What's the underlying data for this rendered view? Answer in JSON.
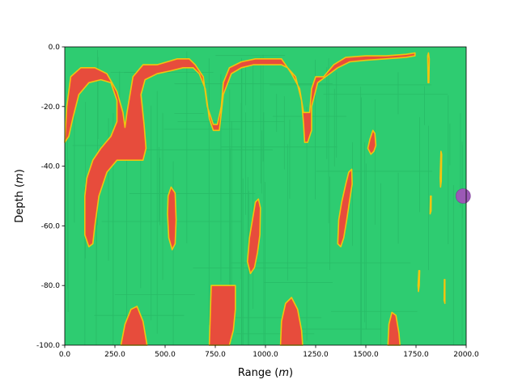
{
  "chart_data": {
    "type": "heatmap",
    "title": "",
    "xlabel": "Range (m)",
    "ylabel": "Depth (m)",
    "xlim": [
      0,
      2000
    ],
    "ylim": [
      -100,
      0
    ],
    "x_ticks": [
      "0.0",
      "250.0",
      "500.0",
      "750.0",
      "1000.0",
      "1250.0",
      "1500.0",
      "1750.0",
      "2000.0"
    ],
    "y_ticks": [
      "0.0",
      "-20.0",
      "-40.0",
      "-60.0",
      "-80.0",
      "-100.0"
    ],
    "grid": false,
    "legend": "none",
    "colors": {
      "background_field": "#2ecc71",
      "region_fill": "#e74c3c",
      "region_edge": "#f1c40f",
      "marker": "#9b59b6"
    },
    "regions": [
      {
        "name": "surface-ridge",
        "points": [
          [
            0,
            -32
          ],
          [
            10,
            -20
          ],
          [
            30,
            -10
          ],
          [
            80,
            -7
          ],
          [
            150,
            -7
          ],
          [
            210,
            -9
          ],
          [
            260,
            -15
          ],
          [
            290,
            -22
          ],
          [
            300,
            -27
          ],
          [
            310,
            -22
          ],
          [
            340,
            -10
          ],
          [
            390,
            -6
          ],
          [
            460,
            -6
          ],
          [
            510,
            -5
          ],
          [
            560,
            -4
          ],
          [
            620,
            -4
          ],
          [
            650,
            -6
          ],
          [
            690,
            -10
          ],
          [
            710,
            -20
          ],
          [
            740,
            -26
          ],
          [
            760,
            -26
          ],
          [
            780,
            -20
          ],
          [
            790,
            -12
          ],
          [
            820,
            -7
          ],
          [
            880,
            -5
          ],
          [
            950,
            -4
          ],
          [
            1010,
            -4
          ],
          [
            1080,
            -4
          ],
          [
            1100,
            -6
          ],
          [
            1130,
            -9
          ],
          [
            1170,
            -14
          ],
          [
            1190,
            -22
          ],
          [
            1220,
            -22
          ],
          [
            1230,
            -14
          ],
          [
            1250,
            -10
          ],
          [
            1290,
            -10
          ],
          [
            1340,
            -6
          ],
          [
            1400,
            -3.5
          ],
          [
            1500,
            -3
          ],
          [
            1600,
            -3
          ],
          [
            1700,
            -2.5
          ],
          [
            1745,
            -2
          ],
          [
            1745,
            -3
          ],
          [
            1700,
            -3.5
          ],
          [
            1600,
            -4
          ],
          [
            1500,
            -4.5
          ],
          [
            1420,
            -5
          ],
          [
            1360,
            -7
          ],
          [
            1300,
            -10
          ],
          [
            1260,
            -12
          ],
          [
            1230,
            -20
          ],
          [
            1230,
            -28
          ],
          [
            1210,
            -32
          ],
          [
            1195,
            -32
          ],
          [
            1190,
            -26
          ],
          [
            1180,
            -18
          ],
          [
            1150,
            -10
          ],
          [
            1110,
            -7
          ],
          [
            1080,
            -6
          ],
          [
            1000,
            -6
          ],
          [
            940,
            -6
          ],
          [
            880,
            -7
          ],
          [
            830,
            -9
          ],
          [
            790,
            -16
          ],
          [
            770,
            -28
          ],
          [
            740,
            -28
          ],
          [
            720,
            -24
          ],
          [
            700,
            -14
          ],
          [
            670,
            -9
          ],
          [
            640,
            -7
          ],
          [
            590,
            -7
          ],
          [
            530,
            -8
          ],
          [
            460,
            -9
          ],
          [
            400,
            -11
          ],
          [
            380,
            -16
          ],
          [
            395,
            -26
          ],
          [
            405,
            -34
          ],
          [
            390,
            -38
          ],
          [
            330,
            -38
          ],
          [
            260,
            -38
          ],
          [
            210,
            -42
          ],
          [
            170,
            -50
          ],
          [
            150,
            -60
          ],
          [
            140,
            -66
          ],
          [
            120,
            -67
          ],
          [
            100,
            -63
          ],
          [
            100,
            -50
          ],
          [
            110,
            -44
          ],
          [
            140,
            -38
          ],
          [
            180,
            -34
          ],
          [
            230,
            -30
          ],
          [
            260,
            -25
          ],
          [
            260,
            -18
          ],
          [
            230,
            -12
          ],
          [
            180,
            -11
          ],
          [
            120,
            -12
          ],
          [
            70,
            -16
          ],
          [
            40,
            -24
          ],
          [
            20,
            -30
          ]
        ]
      },
      {
        "name": "pocket-a",
        "points": [
          [
            515,
            -50
          ],
          [
            530,
            -47
          ],
          [
            550,
            -49
          ],
          [
            555,
            -58
          ],
          [
            550,
            -66
          ],
          [
            535,
            -68
          ],
          [
            518,
            -64
          ],
          [
            512,
            -56
          ]
        ]
      },
      {
        "name": "pocket-b",
        "points": [
          [
            910,
            -72
          ],
          [
            920,
            -64
          ],
          [
            935,
            -58
          ],
          [
            950,
            -52
          ],
          [
            965,
            -51
          ],
          [
            975,
            -54
          ],
          [
            972,
            -63
          ],
          [
            960,
            -69
          ],
          [
            945,
            -74
          ],
          [
            925,
            -76
          ]
        ]
      },
      {
        "name": "pocket-c",
        "points": [
          [
            1360,
            -66
          ],
          [
            1365,
            -58
          ],
          [
            1380,
            -52
          ],
          [
            1400,
            -46
          ],
          [
            1415,
            -42
          ],
          [
            1430,
            -41
          ],
          [
            1432,
            -46
          ],
          [
            1418,
            -52
          ],
          [
            1405,
            -58
          ],
          [
            1390,
            -64
          ],
          [
            1375,
            -67
          ]
        ]
      },
      {
        "name": "pocket-d",
        "points": [
          [
            1510,
            -34
          ],
          [
            1520,
            -31
          ],
          [
            1535,
            -28
          ],
          [
            1545,
            -29
          ],
          [
            1550,
            -33
          ],
          [
            1540,
            -35
          ],
          [
            1525,
            -36
          ]
        ]
      },
      {
        "name": "bottom-a",
        "points": [
          [
            280,
            -100
          ],
          [
            300,
            -93
          ],
          [
            330,
            -88
          ],
          [
            360,
            -87
          ],
          [
            390,
            -92
          ],
          [
            410,
            -100
          ]
        ]
      },
      {
        "name": "bottom-b",
        "points": [
          [
            720,
            -100
          ],
          [
            725,
            -90
          ],
          [
            730,
            -80
          ],
          [
            850,
            -80
          ],
          [
            850,
            -88
          ],
          [
            840,
            -95
          ],
          [
            820,
            -100
          ]
        ]
      },
      {
        "name": "bottom-c",
        "points": [
          [
            1075,
            -100
          ],
          [
            1080,
            -92
          ],
          [
            1100,
            -86
          ],
          [
            1130,
            -84
          ],
          [
            1160,
            -88
          ],
          [
            1180,
            -95
          ],
          [
            1185,
            -100
          ]
        ]
      },
      {
        "name": "bottom-d",
        "points": [
          [
            1610,
            -100
          ],
          [
            1615,
            -93
          ],
          [
            1630,
            -89
          ],
          [
            1650,
            -90
          ],
          [
            1665,
            -96
          ],
          [
            1670,
            -100
          ]
        ]
      },
      {
        "name": "streak-1",
        "points": [
          [
            1808,
            -3
          ],
          [
            1812,
            -2
          ],
          [
            1816,
            -4
          ],
          [
            1814,
            -12
          ],
          [
            1810,
            -12
          ]
        ]
      },
      {
        "name": "streak-2",
        "points": [
          [
            1870,
            -44
          ],
          [
            1874,
            -35
          ],
          [
            1878,
            -36
          ],
          [
            1876,
            -45
          ],
          [
            1872,
            -47
          ]
        ]
      },
      {
        "name": "streak-3",
        "points": [
          [
            1820,
            -56
          ],
          [
            1822,
            -50
          ],
          [
            1826,
            -50
          ],
          [
            1825,
            -55
          ]
        ]
      },
      {
        "name": "streak-4",
        "points": [
          [
            1760,
            -80
          ],
          [
            1764,
            -75
          ],
          [
            1768,
            -75
          ],
          [
            1766,
            -80
          ],
          [
            1762,
            -82
          ]
        ]
      },
      {
        "name": "streak-5",
        "points": [
          [
            1890,
            -85
          ],
          [
            1891,
            -78
          ],
          [
            1894,
            -78
          ],
          [
            1894,
            -86
          ]
        ]
      }
    ],
    "marker": {
      "x": 1985,
      "y": -50
    }
  }
}
